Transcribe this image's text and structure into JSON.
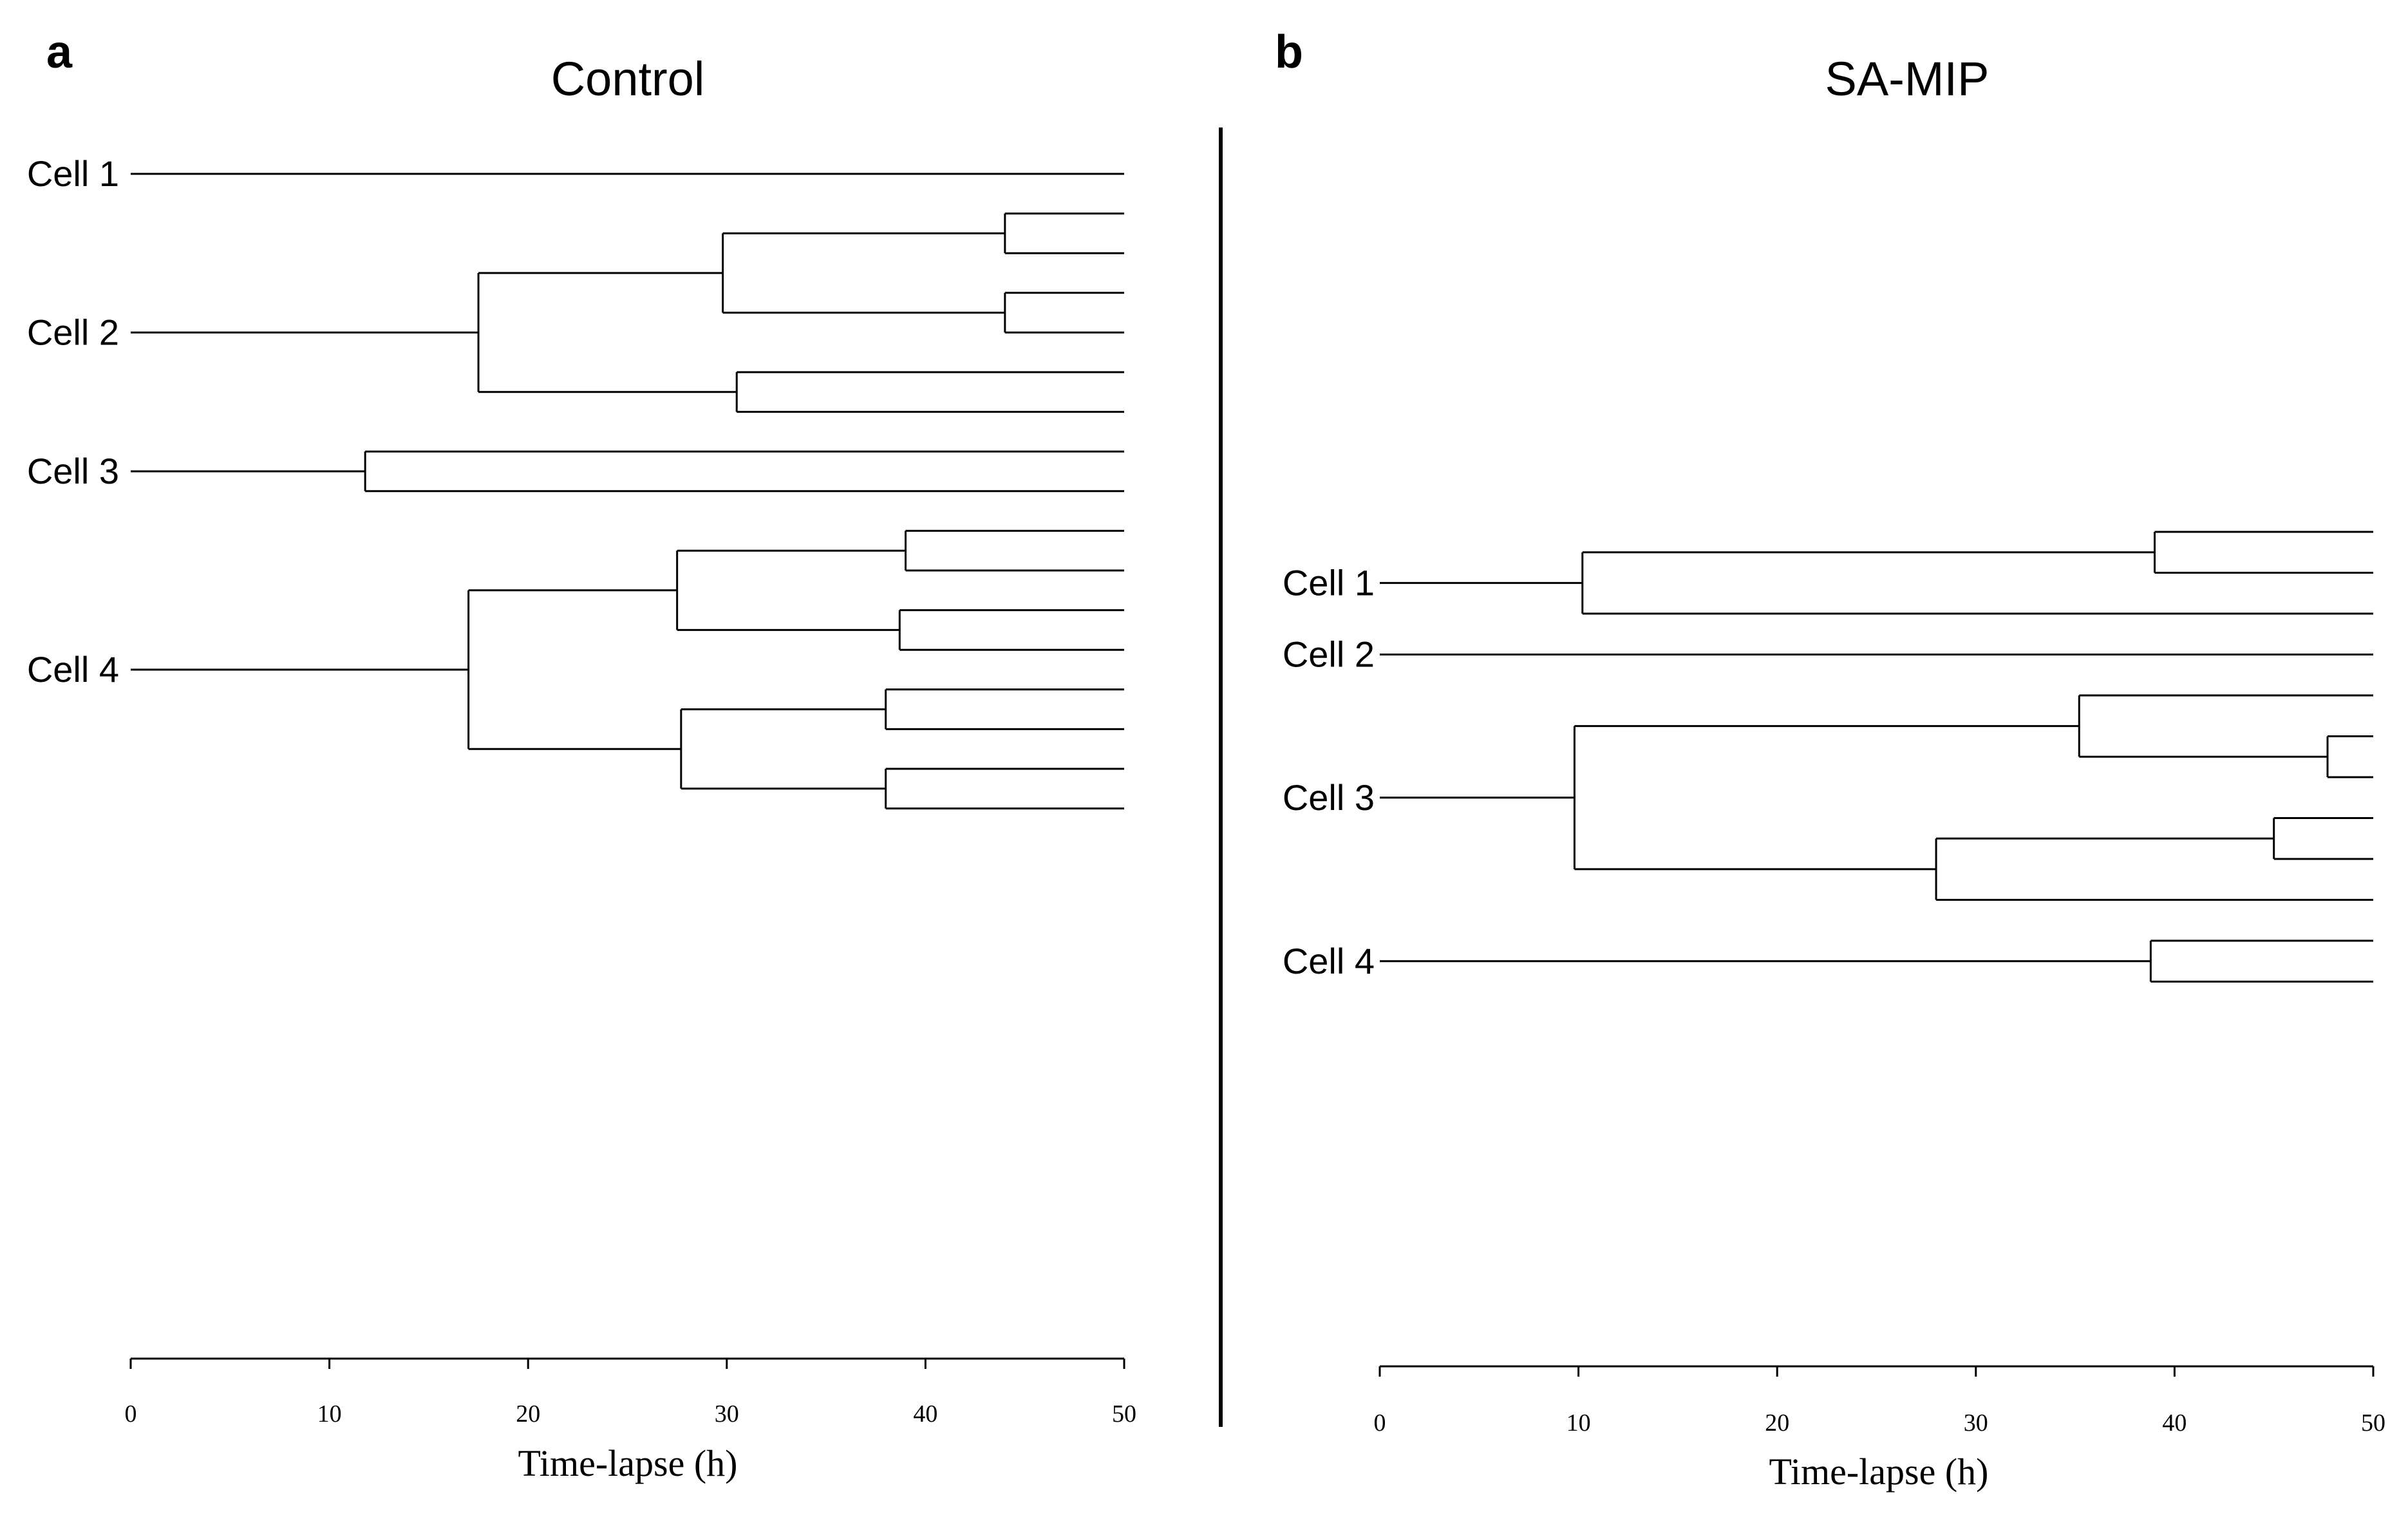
{
  "chart_data": [
    {
      "type": "dendrogram",
      "panel_label": "a",
      "title": "Control",
      "xlabel": "Time-lapse (h)",
      "xlim": [
        0,
        50
      ],
      "xticks": [
        0,
        10,
        20,
        30,
        40,
        50
      ],
      "cells": [
        {
          "label": "Cell 1",
          "tree": {
            "leaf": true
          }
        },
        {
          "label": "Cell 2",
          "tree": {
            "t": 17.5,
            "children": [
              {
                "t": 29.8,
                "children": [
                  {
                    "t": 44,
                    "children": [
                      {
                        "leaf": true
                      },
                      {
                        "leaf": true
                      }
                    ]
                  },
                  {
                    "t": 44,
                    "children": [
                      {
                        "leaf": true
                      },
                      {
                        "leaf": true
                      }
                    ]
                  }
                ]
              },
              {
                "t": 30.5,
                "children": [
                  {
                    "leaf": true
                  },
                  {
                    "leaf": true
                  }
                ]
              }
            ]
          }
        },
        {
          "label": "Cell 3",
          "tree": {
            "t": 11.8,
            "children": [
              {
                "leaf": true
              },
              {
                "leaf": true
              }
            ]
          }
        },
        {
          "label": "Cell 4",
          "tree": {
            "t": 17,
            "children": [
              {
                "t": 27.5,
                "children": [
                  {
                    "t": 39,
                    "children": [
                      {
                        "leaf": true
                      },
                      {
                        "leaf": true
                      }
                    ]
                  },
                  {
                    "t": 38.7,
                    "children": [
                      {
                        "leaf": true
                      },
                      {
                        "leaf": true
                      }
                    ]
                  }
                ]
              },
              {
                "t": 27.7,
                "children": [
                  {
                    "t": 38,
                    "children": [
                      {
                        "leaf": true
                      },
                      {
                        "leaf": true
                      }
                    ]
                  },
                  {
                    "t": 38,
                    "children": [
                      {
                        "leaf": true
                      },
                      {
                        "leaf": true
                      }
                    ]
                  }
                ]
              }
            ]
          }
        }
      ]
    },
    {
      "type": "dendrogram",
      "panel_label": "b",
      "title": "SA-MIP",
      "xlabel": "Time-lapse (h)",
      "xlim": [
        0,
        50
      ],
      "xticks": [
        0,
        10,
        20,
        30,
        40,
        50
      ],
      "cells": [
        {
          "label": "Cell 1",
          "tree": {
            "t": 10.2,
            "children": [
              {
                "t": 39,
                "children": [
                  {
                    "leaf": true
                  },
                  {
                    "leaf": true
                  }
                ]
              },
              {
                "leaf": true
              }
            ]
          }
        },
        {
          "label": "Cell 2",
          "tree": {
            "leaf": true
          }
        },
        {
          "label": "Cell 3",
          "tree": {
            "t": 9.8,
            "children": [
              {
                "t": 35.2,
                "children": [
                  {
                    "leaf": true
                  },
                  {
                    "t": 47.7,
                    "children": [
                      {
                        "leaf": true
                      },
                      {
                        "leaf": true
                      }
                    ]
                  }
                ]
              },
              {
                "t": 28,
                "children": [
                  {
                    "t": 45,
                    "children": [
                      {
                        "leaf": true
                      },
                      {
                        "leaf": true
                      }
                    ]
                  },
                  {
                    "leaf": true
                  }
                ]
              }
            ]
          }
        },
        {
          "label": "Cell 4",
          "tree": {
            "t": 38.8,
            "children": [
              {
                "leaf": true
              },
              {
                "leaf": true
              }
            ]
          }
        }
      ]
    }
  ]
}
